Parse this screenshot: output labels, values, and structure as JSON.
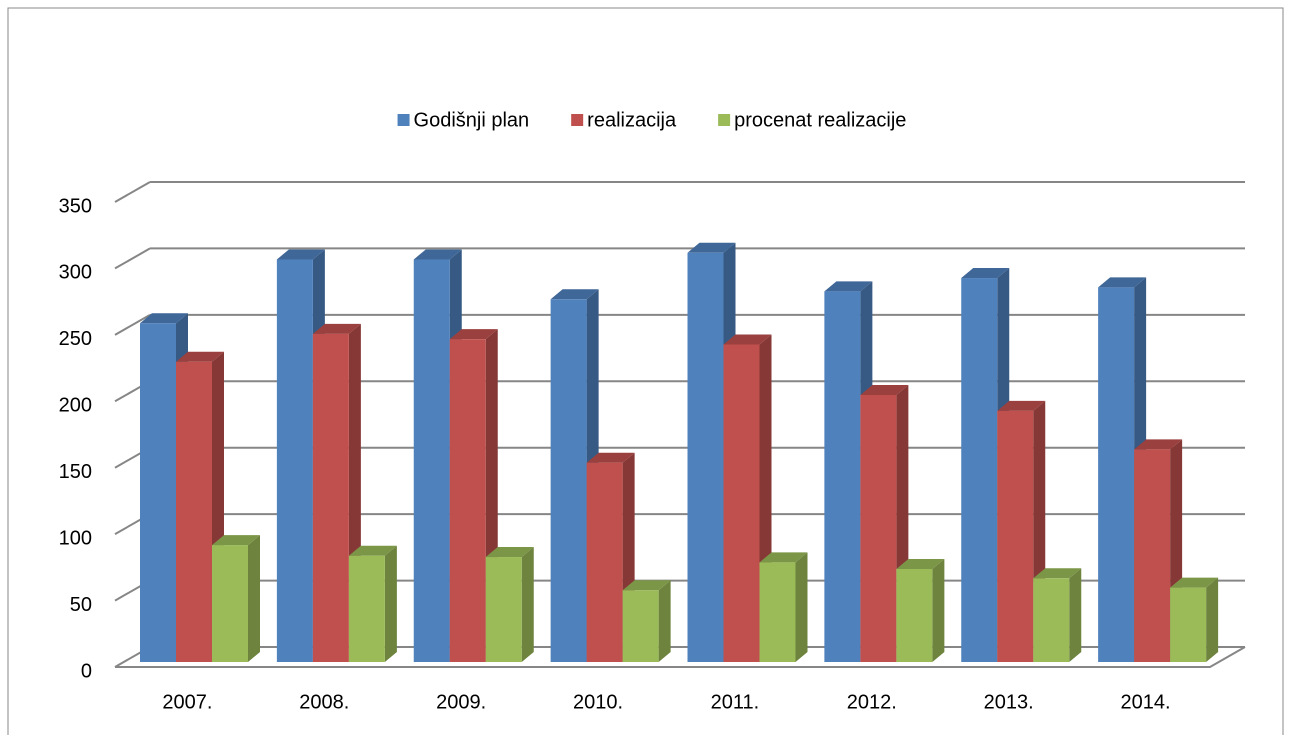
{
  "chart_data": {
    "type": "bar3d",
    "categories": [
      "2007.",
      "2008.",
      "2009.",
      "2010.",
      "2011.",
      "2012.",
      "2013.",
      "2014."
    ],
    "series": [
      {
        "name": "Godišnji plan",
        "color": "#4f81bd",
        "values": [
          255,
          303,
          303,
          273,
          308,
          279,
          289,
          282
        ]
      },
      {
        "name": "realizacija",
        "color": "#c0504d",
        "values": [
          226,
          247,
          243,
          150,
          239,
          201,
          189,
          160
        ]
      },
      {
        "name": "procenat realizacije",
        "color": "#9bbb59",
        "values": [
          88,
          80,
          79,
          54,
          75,
          70,
          63,
          56
        ]
      }
    ],
    "ylim": [
      0,
      350
    ],
    "yticks": [
      0,
      50,
      100,
      150,
      200,
      250,
      300,
      350
    ],
    "grid": true,
    "legend": "top"
  }
}
